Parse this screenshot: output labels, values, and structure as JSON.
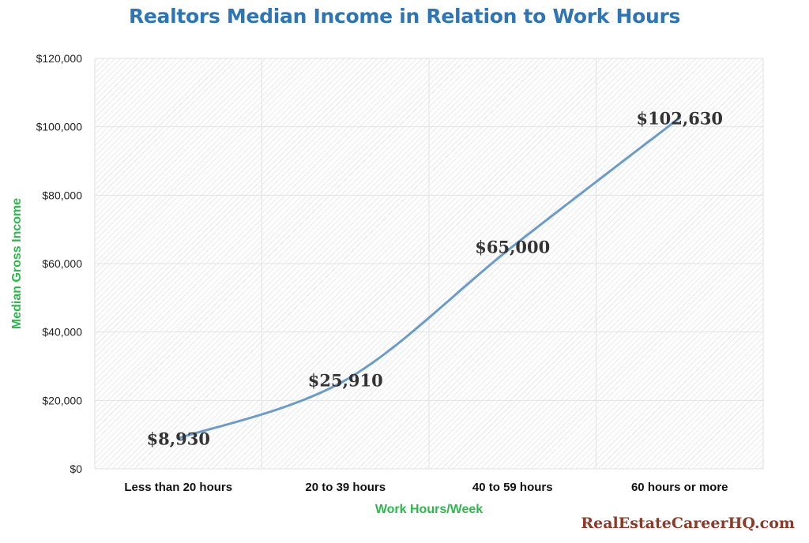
{
  "chart_data": {
    "type": "line",
    "title": "Realtors Median Income in Relation to Work Hours",
    "xlabel": "Work Hours/Week",
    "ylabel": "Median Gross Income",
    "categories": [
      "Less than 20 hours",
      "20 to 39 hours",
      "40 to 59 hours",
      "60 hours or more"
    ],
    "series": [
      {
        "values": [
          8930,
          25910,
          65000,
          102630
        ],
        "color": "#6A9CCB"
      }
    ],
    "data_labels": [
      "$8,930",
      "$25,910",
      "$65,000",
      "$102,630"
    ],
    "ylim": [
      0,
      120000
    ],
    "yticks": [
      0,
      20000,
      40000,
      60000,
      80000,
      100000,
      120000
    ],
    "ytick_labels": [
      "$0",
      "$20,000",
      "$40,000",
      "$60,000",
      "$80,000",
      "$100,000",
      "$120,000"
    ],
    "grid": true,
    "legend": "none",
    "colors": {
      "title": "#2E75B6",
      "axis_label": "#2DB84C",
      "line": "#6A9CCB",
      "watermark": "#8B3A2A"
    }
  },
  "watermark": "RealEstateCareerHQ.com"
}
